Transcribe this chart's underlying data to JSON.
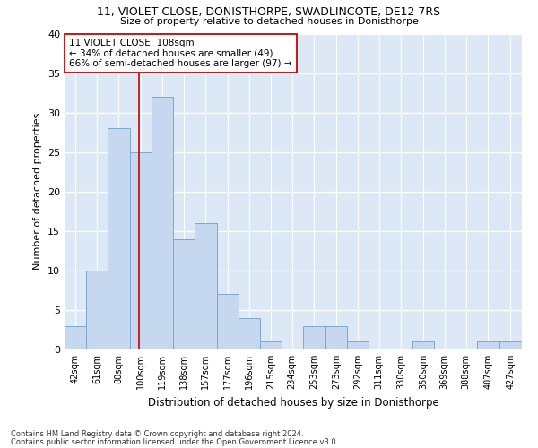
{
  "title1": "11, VIOLET CLOSE, DONISTHORPE, SWADLINCOTE, DE12 7RS",
  "title2": "Size of property relative to detached houses in Donisthorpe",
  "xlabel": "Distribution of detached houses by size in Donisthorpe",
  "ylabel": "Number of detached properties",
  "footnote1": "Contains HM Land Registry data © Crown copyright and database right 2024.",
  "footnote2": "Contains public sector information licensed under the Open Government Licence v3.0.",
  "categories": [
    "42sqm",
    "61sqm",
    "80sqm",
    "100sqm",
    "119sqm",
    "138sqm",
    "157sqm",
    "177sqm",
    "196sqm",
    "215sqm",
    "234sqm",
    "253sqm",
    "273sqm",
    "292sqm",
    "311sqm",
    "330sqm",
    "350sqm",
    "369sqm",
    "388sqm",
    "407sqm",
    "427sqm"
  ],
  "values": [
    3,
    10,
    28,
    25,
    32,
    14,
    16,
    7,
    4,
    1,
    0,
    3,
    3,
    1,
    0,
    0,
    1,
    0,
    0,
    1,
    1
  ],
  "bar_color": "#c5d8ef",
  "bar_edge_color": "#7ba7d0",
  "bg_color": "#dce8f5",
  "grid_color": "#ffffff",
  "vline_color": "#cc0000",
  "annotation_text": "11 VIOLET CLOSE: 108sqm\n← 34% of detached houses are smaller (49)\n66% of semi-detached houses are larger (97) →",
  "ylim": [
    0,
    40
  ],
  "yticks": [
    0,
    5,
    10,
    15,
    20,
    25,
    30,
    35,
    40
  ],
  "x_starts": [
    42,
    61,
    80,
    100,
    119,
    138,
    157,
    177,
    196,
    215,
    234,
    253,
    273,
    292,
    311,
    330,
    350,
    369,
    388,
    407,
    427
  ],
  "vline_x_data": 108
}
